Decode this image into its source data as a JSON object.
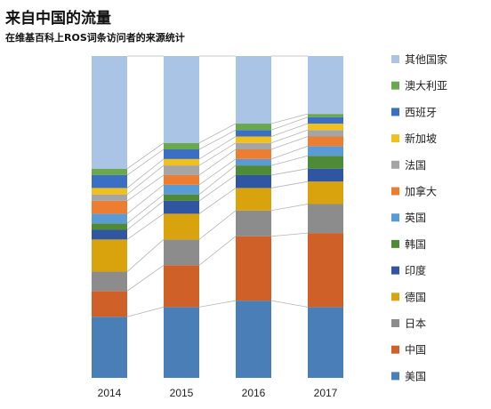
{
  "chart_data": {
    "type": "bar",
    "stacked": true,
    "title": "来自中国的流量",
    "subtitle": "在维基百科上ROS词条访问者的来源统计",
    "categories": [
      "2014",
      "2015",
      "2016",
      "2017"
    ],
    "ylim": [
      0,
      100
    ],
    "grid": false,
    "legend_placement": "right",
    "series": [
      {
        "name": "美国",
        "color": "#4a7eb6",
        "values": [
          19,
          22,
          24,
          22
        ]
      },
      {
        "name": "中国",
        "color": "#cf6128",
        "values": [
          8,
          13,
          20,
          23
        ]
      },
      {
        "name": "日本",
        "color": "#8c8c8c",
        "values": [
          6,
          8,
          8,
          9
        ]
      },
      {
        "name": "德国",
        "color": "#d9a30e",
        "values": [
          10,
          8,
          7,
          7
        ]
      },
      {
        "name": "印度",
        "color": "#2f55a3",
        "values": [
          3,
          4,
          4,
          4
        ]
      },
      {
        "name": "韩国",
        "color": "#4f8a36",
        "values": [
          2,
          2,
          3,
          4
        ]
      },
      {
        "name": "英国",
        "color": "#5b9bd5",
        "values": [
          3,
          3,
          2,
          3
        ]
      },
      {
        "name": "加拿大",
        "color": "#ed7d31",
        "values": [
          4,
          3,
          3,
          3
        ]
      },
      {
        "name": "法国",
        "color": "#a5a5a5",
        "values": [
          2,
          3,
          2,
          2
        ]
      },
      {
        "name": "新加坡",
        "color": "#f2c01d",
        "values": [
          2,
          2,
          2,
          2
        ]
      },
      {
        "name": "西班牙",
        "color": "#3a6fc4",
        "values": [
          4,
          3,
          2,
          2
        ]
      },
      {
        "name": "澳大利亚",
        "color": "#6aa84f",
        "values": [
          2,
          2,
          2,
          1
        ]
      },
      {
        "name": "其他国家",
        "color": "#a9c4e4",
        "values": [
          35,
          27,
          21,
          18
        ]
      }
    ]
  }
}
